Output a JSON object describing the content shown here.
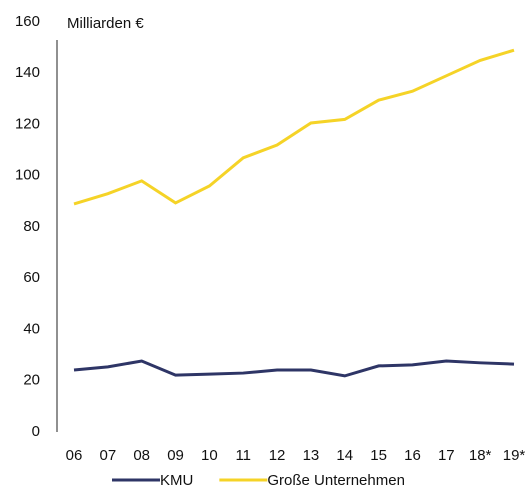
{
  "chart_data": {
    "type": "line",
    "y_axis_label": "Milliarden €",
    "categories": [
      "06",
      "07",
      "08",
      "09",
      "10",
      "11",
      "12",
      "13",
      "14",
      "15",
      "16",
      "17",
      "18*",
      "19*"
    ],
    "series": [
      {
        "name": "KMU",
        "color": "#2e3566",
        "values": [
          24.2,
          25.4,
          27.7,
          22.2,
          22.6,
          23,
          24.2,
          24.2,
          21.9,
          25.8,
          26.2,
          27.7,
          27,
          26.5
        ]
      },
      {
        "name": "Große Unternehmen",
        "color": "#f5d327",
        "values": [
          89,
          93,
          98,
          89.4,
          96,
          107,
          112,
          120.6,
          122,
          129.5,
          133,
          139,
          145,
          149
        ]
      }
    ],
    "ylim": [
      0,
      160
    ],
    "yticks": [
      0,
      20,
      40,
      60,
      80,
      100,
      120,
      140,
      160
    ],
    "grid": false,
    "legend": "bottom"
  }
}
